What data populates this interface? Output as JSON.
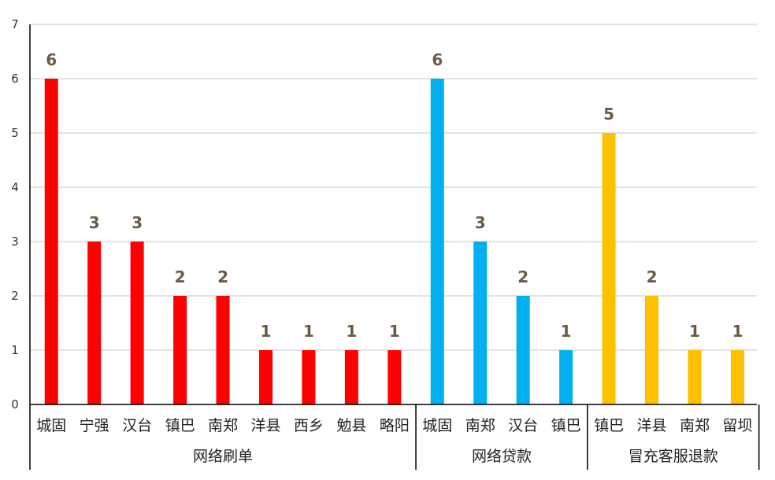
{
  "chart_data": {
    "type": "bar",
    "title": "",
    "xlabel": "",
    "ylabel": "",
    "ylim": [
      0,
      7
    ],
    "yticks": [
      0,
      1,
      2,
      3,
      4,
      5,
      6,
      7
    ],
    "grid": true,
    "groups": [
      {
        "name": "网络刷单",
        "color": "#ff0000",
        "categories": [
          "城固",
          "宁强",
          "汉台",
          "镇巴",
          "南郑",
          "洋县",
          "西乡",
          "勉县",
          "略阳"
        ],
        "values": [
          6,
          3,
          3,
          2,
          2,
          1,
          1,
          1,
          1
        ]
      },
      {
        "name": "网络贷款",
        "color": "#00b0f0",
        "categories": [
          "城固",
          "南郑",
          "汉台",
          "镇巴"
        ],
        "values": [
          6,
          3,
          2,
          1
        ]
      },
      {
        "name": "冒充客服退款",
        "color": "#ffc000",
        "categories": [
          "镇巴",
          "洋县",
          "南郑",
          "留坝"
        ],
        "values": [
          5,
          2,
          1,
          1
        ]
      }
    ]
  }
}
